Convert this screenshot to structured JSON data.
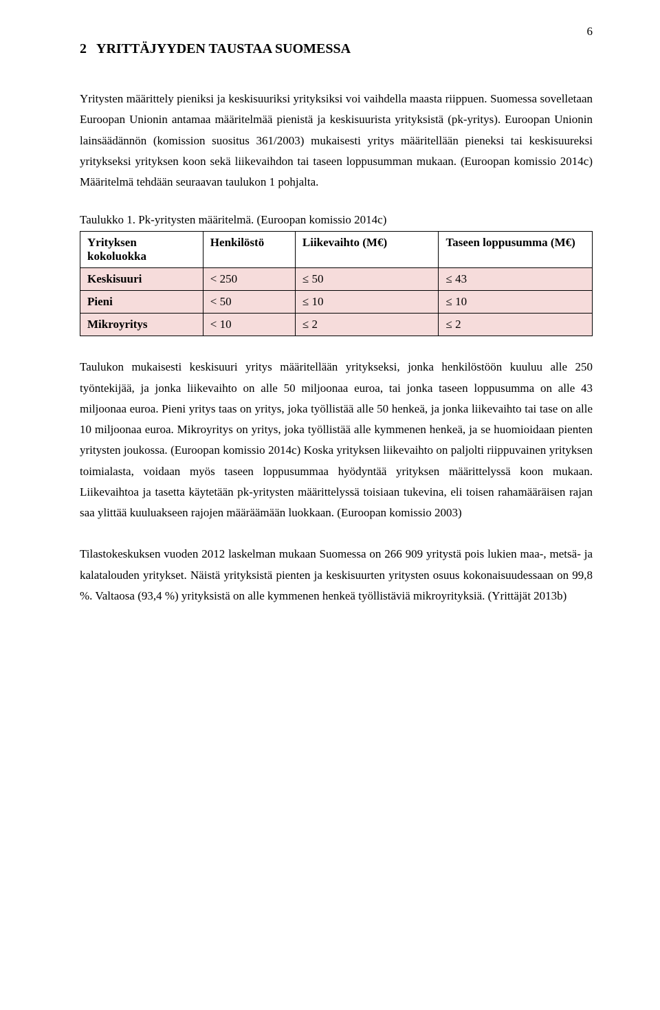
{
  "page_number": "6",
  "heading": {
    "number": "2",
    "title": "YRITTÄJYYDEN TAUSTAA SUOMESSA"
  },
  "paragraph1": "Yritysten määrittely pieniksi ja keskisuuriksi yrityksiksi voi vaihdella maasta riippuen. Suomessa sovelletaan Euroopan Unionin antamaa määritelmää pienistä ja keskisuurista yrityksistä (pk-yritys). Euroopan Unionin lainsäädännön (komission suositus 361/2003) mukaisesti yritys määritellään pieneksi tai keskisuureksi yritykseksi yrityksen koon sekä liikevaihdon tai taseen loppusumman mukaan. (Euroopan komissio 2014c) Määritelmä tehdään seuraavan taulukon 1 pohjalta.",
  "table_caption": "Taulukko 1. Pk-yritysten määritelmä. (Euroopan komissio 2014c)",
  "table": {
    "headers": {
      "col0": "Yrityksen kokoluokka",
      "col1": "Henkilöstö",
      "col2": "Liikevaihto (M€)",
      "col3": "Taseen loppusumma (M€)"
    },
    "rows": [
      {
        "label": "Keskisuuri",
        "c1": "< 250",
        "c2": "≤ 50",
        "c3": "≤ 43"
      },
      {
        "label": "Pieni",
        "c1": "< 50",
        "c2": "≤ 10",
        "c3": "≤ 10"
      },
      {
        "label": "Mikroyritys",
        "c1": "< 10",
        "c2": "≤ 2",
        "c3": "≤ 2"
      }
    ],
    "row_bg": "#f6dcdb",
    "border_color": "#000000"
  },
  "paragraph2": "Taulukon mukaisesti keskisuuri yritys määritellään yritykseksi, jonka henkilöstöön kuuluu alle 250 työntekijää, ja jonka liikevaihto on alle 50 miljoonaa euroa, tai jonka taseen loppusumma on alle 43 miljoonaa euroa. Pieni yritys taas on yritys, joka työllistää alle 50 henkeä, ja jonka liikevaihto tai tase on alle 10 miljoonaa euroa. Mikroyritys on yritys, joka työllistää alle kymmenen henkeä, ja se huomioidaan pienten yritysten joukossa. (Euroopan komissio 2014c) Koska yrityksen liikevaihto on paljolti riippuvainen yrityksen toimialasta, voidaan myös taseen loppusummaa hyödyntää yrityksen määrittelyssä koon mukaan. Liikevaihtoa ja tasetta käytetään pk-yritysten määrittelyssä toisiaan tukevina, eli toisen rahamääräisen rajan saa ylittää kuuluakseen rajojen määräämään luokkaan. (Euroopan komissio 2003)",
  "paragraph3": "Tilastokeskuksen vuoden 2012 laskelman mukaan Suomessa on 266 909 yritystä pois lukien maa-, metsä- ja kalatalouden yritykset. Näistä yrityksistä pienten ja keskisuurten yritysten osuus kokonaisuudessaan on 99,8 %. Valtaosa (93,4 %) yrityksistä on alle kymmenen henkeä työllistäviä mikroyrityksiä. (Yrittäjät 2013b)"
}
